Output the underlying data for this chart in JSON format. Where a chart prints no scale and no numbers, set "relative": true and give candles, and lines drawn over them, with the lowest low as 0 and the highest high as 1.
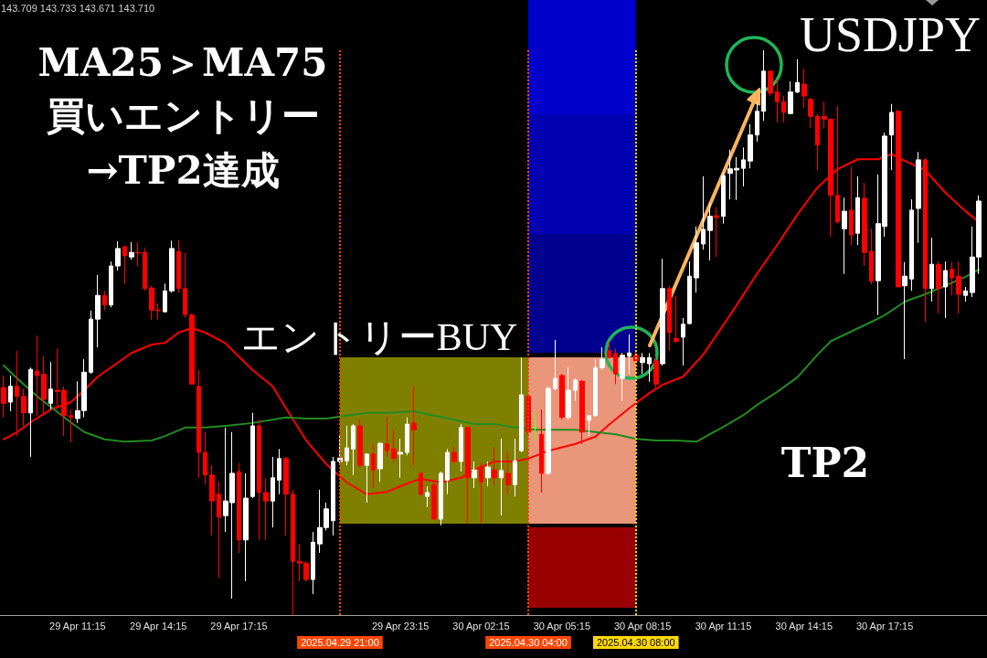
{
  "chart_data": {
    "type": "candlestick",
    "title": "USDJPY",
    "annotations": [
      "143.709 143.733 143.671 143.710",
      "MA25＞MA75",
      "買いエントリー",
      "→TP2達成",
      "エントリーBUY",
      "TP2"
    ],
    "relative": true,
    "x": [
      "2025-04-29T08:30",
      "2025-04-29T08:45",
      "2025-04-29T09:00",
      "2025-04-29T09:15",
      "2025-04-29T09:30",
      "2025-04-29T09:45",
      "2025-04-29T10:00",
      "2025-04-29T10:15",
      "2025-04-29T10:30",
      "2025-04-29T10:45",
      "2025-04-29T11:00",
      "2025-04-29T11:15",
      "2025-04-29T11:30",
      "2025-04-29T11:45",
      "2025-04-29T12:00",
      "2025-04-29T12:15",
      "2025-04-29T12:30",
      "2025-04-29T12:45",
      "2025-04-29T13:00",
      "2025-04-29T13:15",
      "2025-04-29T13:30",
      "2025-04-29T13:45",
      "2025-04-29T14:00",
      "2025-04-29T14:15",
      "2025-04-29T14:30",
      "2025-04-29T14:45",
      "2025-04-29T15:00",
      "2025-04-29T15:15",
      "2025-04-29T15:30",
      "2025-04-29T15:45",
      "2025-04-29T16:00",
      "2025-04-29T16:15",
      "2025-04-29T16:30",
      "2025-04-29T16:45",
      "2025-04-29T17:00",
      "2025-04-29T17:15",
      "2025-04-29T17:30",
      "2025-04-29T17:45",
      "2025-04-29T18:00",
      "2025-04-29T18:15",
      "2025-04-29T18:30",
      "2025-04-29T18:45",
      "2025-04-29T19:00",
      "2025-04-29T19:15",
      "2025-04-29T19:30",
      "2025-04-29T19:45",
      "2025-04-29T20:00",
      "2025-04-29T20:15",
      "2025-04-29T20:30",
      "2025-04-29T20:45",
      "2025-04-29T21:00",
      "2025-04-29T21:15",
      "2025-04-29T21:30",
      "2025-04-29T21:45",
      "2025-04-29T22:00",
      "2025-04-29T22:15",
      "2025-04-29T22:30",
      "2025-04-29T22:45",
      "2025-04-29T23:00",
      "2025-04-29T23:15",
      "2025-04-29T23:30",
      "2025-04-29T23:45",
      "2025-04-30T00:00",
      "2025-04-30T00:15",
      "2025-04-30T00:30",
      "2025-04-30T00:45",
      "2025-04-30T01:00",
      "2025-04-30T01:15",
      "2025-04-30T01:30",
      "2025-04-30T01:45",
      "2025-04-30T02:00",
      "2025-04-30T02:15",
      "2025-04-30T02:30",
      "2025-04-30T02:45",
      "2025-04-30T03:00",
      "2025-04-30T03:15",
      "2025-04-30T03:30",
      "2025-04-30T03:45",
      "2025-04-30T04:00",
      "2025-04-30T04:15",
      "2025-04-30T04:30",
      "2025-04-30T04:45",
      "2025-04-30T05:00",
      "2025-04-30T05:15",
      "2025-04-30T05:30",
      "2025-04-30T05:45",
      "2025-04-30T06:00",
      "2025-04-30T06:15",
      "2025-04-30T06:30",
      "2025-04-30T06:45",
      "2025-04-30T07:00",
      "2025-04-30T07:15",
      "2025-04-30T07:30",
      "2025-04-30T07:45",
      "2025-04-30T08:00",
      "2025-04-30T08:15",
      "2025-04-30T08:30",
      "2025-04-30T08:45",
      "2025-04-30T09:00",
      "2025-04-30T09:15",
      "2025-04-30T09:30",
      "2025-04-30T09:45",
      "2025-04-30T10:00",
      "2025-04-30T10:15",
      "2025-04-30T10:30",
      "2025-04-30T10:45",
      "2025-04-30T11:00",
      "2025-04-30T11:15",
      "2025-04-30T11:30",
      "2025-04-30T11:45",
      "2025-04-30T12:00",
      "2025-04-30T12:15",
      "2025-04-30T12:30",
      "2025-04-30T12:45",
      "2025-04-30T13:00",
      "2025-04-30T13:15",
      "2025-04-30T13:30",
      "2025-04-30T13:45",
      "2025-04-30T14:00",
      "2025-04-30T14:15",
      "2025-04-30T14:30",
      "2025-04-30T14:45",
      "2025-04-30T15:00",
      "2025-04-30T15:15",
      "2025-04-30T15:30",
      "2025-04-30T15:45",
      "2025-04-30T16:00",
      "2025-04-30T16:15",
      "2025-04-30T16:30",
      "2025-04-30T16:45",
      "2025-04-30T17:00",
      "2025-04-30T17:15",
      "2025-04-30T17:30",
      "2025-04-30T17:45",
      "2025-04-30T18:00",
      "2025-04-30T18:15",
      "2025-04-30T18:30",
      "2025-04-30T18:45",
      "2025-04-30T19:00",
      "2025-04-30T19:15",
      "2025-04-30T19:30",
      "2025-04-30T19:45",
      "2025-04-30T20:00",
      "2025-04-30T20:15",
      "2025-04-30T20:30",
      "2025-04-30T20:45"
    ],
    "ohlc": [
      [
        0.403,
        0.424,
        0.35,
        0.375
      ],
      [
        0.377,
        0.424,
        0.361,
        0.405
      ],
      [
        0.405,
        0.468,
        0.317,
        0.387
      ],
      [
        0.387,
        0.401,
        0.335,
        0.358
      ],
      [
        0.358,
        0.438,
        0.28,
        0.435
      ],
      [
        0.432,
        0.495,
        0.353,
        0.424
      ],
      [
        0.426,
        0.458,
        0.353,
        0.382
      ],
      [
        0.375,
        0.448,
        0.364,
        0.4
      ],
      [
        0.398,
        0.472,
        0.364,
        0.396
      ],
      [
        0.398,
        0.405,
        0.317,
        0.353
      ],
      [
        0.353,
        0.364,
        0.306,
        0.35
      ],
      [
        0.348,
        0.414,
        0.34,
        0.362
      ],
      [
        0.362,
        0.453,
        0.35,
        0.43
      ],
      [
        0.43,
        0.539,
        0.427,
        0.524
      ],
      [
        0.524,
        0.602,
        0.474,
        0.566
      ],
      [
        0.566,
        0.574,
        0.54,
        0.549
      ],
      [
        0.549,
        0.626,
        0.545,
        0.618
      ],
      [
        0.618,
        0.662,
        0.61,
        0.649
      ],
      [
        0.652,
        0.655,
        0.586,
        0.636
      ],
      [
        0.634,
        0.66,
        0.629,
        0.642
      ],
      [
        0.642,
        0.66,
        0.618,
        0.641
      ],
      [
        0.642,
        0.65,
        0.574,
        0.578
      ],
      [
        0.579,
        0.583,
        0.523,
        0.54
      ],
      [
        0.54,
        0.552,
        0.523,
        0.539
      ],
      [
        0.537,
        0.587,
        0.536,
        0.574
      ],
      [
        0.574,
        0.663,
        0.571,
        0.649
      ],
      [
        0.644,
        0.663,
        0.571,
        0.578
      ],
      [
        0.578,
        0.641,
        0.526,
        0.532
      ],
      [
        0.531,
        0.534,
        0.408,
        0.409
      ],
      [
        0.405,
        0.434,
        0.243,
        0.288
      ],
      [
        0.288,
        0.324,
        0.231,
        0.248
      ],
      [
        0.248,
        0.265,
        0.141,
        0.202
      ],
      [
        0.214,
        0.236,
        0.066,
        0.173
      ],
      [
        0.176,
        0.332,
        0.147,
        0.202
      ],
      [
        0.199,
        0.324,
        0.029,
        0.251
      ],
      [
        0.254,
        0.269,
        0.11,
        0.133
      ],
      [
        0.133,
        0.251,
        0.06,
        0.207
      ],
      [
        0.21,
        0.358,
        0.207,
        0.335
      ],
      [
        0.335,
        0.346,
        0.133,
        0.217
      ],
      [
        0.217,
        0.243,
        0.133,
        0.202
      ],
      [
        0.202,
        0.28,
        0.155,
        0.243
      ],
      [
        0.239,
        0.294,
        0.214,
        0.277
      ],
      [
        0.277,
        0.28,
        0.141,
        0.214
      ],
      [
        0.214,
        0.222,
        0,
        0.095
      ],
      [
        0.095,
        0.126,
        0.06,
        0.092
      ],
      [
        0.092,
        0.095,
        0.06,
        0.063
      ],
      [
        0.063,
        0.147,
        0.037,
        0.129
      ],
      [
        0.126,
        0.222,
        0.11,
        0.155
      ],
      [
        0.155,
        0.199,
        0.15,
        0.188
      ],
      [
        0.167,
        0.28,
        0.141,
        0.272
      ],
      [
        0.272,
        0.32,
        0.269,
        0.278
      ],
      [
        0.273,
        0.335,
        0.265,
        0.296
      ],
      [
        0.294,
        0.338,
        0.248,
        0.335
      ],
      [
        0.335,
        0.346,
        0.262,
        0.265
      ],
      [
        0.265,
        0.286,
        0.199,
        0.285
      ],
      [
        0.285,
        0.303,
        0.225,
        0.257
      ],
      [
        0.259,
        0.306,
        0.236,
        0.304
      ],
      [
        0.303,
        0.35,
        0.28,
        0.291
      ],
      [
        0.294,
        0.328,
        0.272,
        0.277
      ],
      [
        0.285,
        0.312,
        0.243,
        0.288
      ],
      [
        0.288,
        0.35,
        0.283,
        0.338
      ],
      [
        0.34,
        0.405,
        0.265,
        0.328
      ],
      [
        0.251,
        0.251,
        0.21,
        0.214
      ],
      [
        0.21,
        0.228,
        0.191,
        0.217
      ],
      [
        0.231,
        0.236,
        0.168,
        0.17
      ],
      [
        0.17,
        0.254,
        0.159,
        0.251
      ],
      [
        0.239,
        0.294,
        0.214,
        0.288
      ],
      [
        0.288,
        0.298,
        0.269,
        0.272
      ],
      [
        0.272,
        0.338,
        0.254,
        0.332
      ],
      [
        0.332,
        0.332,
        0.162,
        0.243
      ],
      [
        0.243,
        0.272,
        0.225,
        0.257
      ],
      [
        0.262,
        0.269,
        0.162,
        0.236
      ],
      [
        0.243,
        0.272,
        0.228,
        0.262
      ],
      [
        0.257,
        0.298,
        0.231,
        0.243
      ],
      [
        0.243,
        0.312,
        0.176,
        0.256
      ],
      [
        0.251,
        0.288,
        0.214,
        0.231
      ],
      [
        0.231,
        0.312,
        0.21,
        0.273
      ],
      [
        0.291,
        0.456,
        0.288,
        0.39
      ],
      [
        0.387,
        0.39,
        0.32,
        0.324
      ],
      [
        0.332,
        0.358,
        0.309,
        0.332
      ],
      [
        0.32,
        0.364,
        0.217,
        0.251
      ],
      [
        0.251,
        0.405,
        0.248,
        0.401
      ],
      [
        0.401,
        0.487,
        0.398,
        0.419
      ],
      [
        0.424,
        0.427,
        0.346,
        0.35
      ],
      [
        0.35,
        0.438,
        0.346,
        0.398
      ],
      [
        0.398,
        0.419,
        0.379,
        0.416
      ],
      [
        0.414,
        0.416,
        0.303,
        0.324
      ],
      [
        0.345,
        0.353,
        0.317,
        0.353
      ],
      [
        0.353,
        0.453,
        0.353,
        0.438
      ],
      [
        0.438,
        0.474,
        0.434,
        0.453
      ],
      [
        0.468,
        0.485,
        0.456,
        0.456
      ],
      [
        0.463,
        0.472,
        0.409,
        0.427
      ],
      [
        0.419,
        0.464,
        0.379,
        0.46
      ],
      [
        0.458,
        0.497,
        0.427,
        0.464
      ],
      [
        0.46,
        0.466,
        0.445,
        0.45
      ],
      [
        0.447,
        0.464,
        0.427,
        0.456
      ],
      [
        0.445,
        0.464,
        0.413,
        0.456
      ],
      [
        0.45,
        0.458,
        0.401,
        0.409
      ],
      [
        0.445,
        0.631,
        0.442,
        0.578
      ],
      [
        0.578,
        0.583,
        0.468,
        0.5
      ],
      [
        0.49,
        0.565,
        0.482,
        0.485
      ],
      [
        0.492,
        0.526,
        0.442,
        0.515
      ],
      [
        0.516,
        0.626,
        0.515,
        0.6
      ],
      [
        0.597,
        0.688,
        0.571,
        0.659
      ],
      [
        0.657,
        0.777,
        0.647,
        0.683
      ],
      [
        0.681,
        0.73,
        0.628,
        0.706
      ],
      [
        0.707,
        0.722,
        0.634,
        0.704
      ],
      [
        0.706,
        0.783,
        0.693,
        0.778
      ],
      [
        0.782,
        0.824,
        0.736,
        0.79
      ],
      [
        0.788,
        0.811,
        0.735,
        0.791
      ],
      [
        0.791,
        0.828,
        0.759,
        0.806
      ],
      [
        0.804,
        0.869,
        0.791,
        0.85
      ],
      [
        0.85,
        0.909,
        0.838,
        0.892
      ],
      [
        0.892,
        1,
        0.875,
        0.963
      ],
      [
        0.963,
        0.963,
        0.919,
        0.924
      ],
      [
        0.926,
        0.948,
        0.872,
        0.909
      ],
      [
        0.909,
        0.919,
        0.872,
        0.89
      ],
      [
        0.888,
        0.945,
        0.887,
        0.926
      ],
      [
        0.926,
        0.984,
        0.924,
        0.943
      ],
      [
        0.94,
        0.968,
        0.898,
        0.919
      ],
      [
        0.913,
        0.916,
        0.862,
        0.883
      ],
      [
        0.883,
        0.887,
        0.788,
        0.832
      ],
      [
        0.883,
        0.909,
        0.861,
        0.878
      ],
      [
        0.878,
        0.878,
        0.67,
        0.743
      ],
      [
        0.743,
        0.901,
        0.693,
        0.696
      ],
      [
        0.684,
        0.739,
        0.604,
        0.715
      ],
      [
        0.717,
        0.794,
        0.655,
        0.673
      ],
      [
        0.676,
        0.777,
        0.655,
        0.739
      ],
      [
        0.738,
        0.765,
        0.618,
        0.642
      ],
      [
        0.644,
        0.684,
        0.586,
        0.591
      ],
      [
        0.592,
        0.78,
        0.531,
        0.693
      ],
      [
        0.688,
        0.854,
        0.67,
        0.848
      ],
      [
        0.85,
        0.905,
        0.788,
        0.89
      ],
      [
        0.892,
        0.895,
        0.581,
        0.581
      ],
      [
        0.583,
        0.625,
        0.453,
        0.6
      ],
      [
        0.595,
        0.736,
        0.574,
        0.717
      ],
      [
        0.72,
        0.82,
        0.659,
        0.806
      ],
      [
        0.806,
        0.809,
        0.519,
        0.578
      ],
      [
        0.578,
        0.668,
        0.555,
        0.621
      ],
      [
        0.621,
        0.626,
        0.534,
        0.578
      ],
      [
        0.581,
        0.626,
        0.526,
        0.61
      ],
      [
        0.612,
        0.625,
        0.566,
        0.597
      ],
      [
        0.6,
        0.626,
        0.534,
        0.568
      ],
      [
        0.566,
        0.581,
        0.555,
        0.574
      ],
      [
        0.571,
        0.688,
        0.563,
        0.634
      ],
      [
        0.634,
        0.743,
        0.604,
        0.733
      ]
    ],
    "colors": [
      "#ff0000",
      "#ffffff",
      "#ff0000",
      "#ff0000",
      "#ffffff",
      "#ff0000",
      "#ff0000",
      "#ffffff",
      "#ff0000",
      "#ff0000",
      "#ff0000",
      "#ffffff",
      "#ffffff",
      "#ffffff",
      "#ffffff",
      "#ff0000",
      "#ffffff",
      "#ffffff",
      "#ff0000",
      "#ffffff",
      "#ff0000",
      "#ff0000",
      "#ff0000",
      "#ff0000",
      "#ffffff",
      "#ffffff",
      "#ff0000",
      "#ff0000",
      "#ff0000",
      "#ff0000",
      "#ff0000",
      "#ff0000",
      "#ff0000",
      "#ffffff",
      "#ffffff",
      "#ff0000",
      "#ffffff",
      "#ffffff",
      "#ff0000",
      "#ff0000",
      "#ffffff",
      "#ffffff",
      "#ff0000",
      "#ff0000",
      "#ff0000",
      "#ff0000",
      "#ffffff",
      "#ffffff",
      "#ffffff",
      "#ffffff",
      "#ffffff",
      "#ffffff",
      "#ffffff",
      "#ff0000",
      "#ffffff",
      "#ff0000",
      "#ffffff",
      "#ff0000",
      "#ff0000",
      "#ffffff",
      "#ffffff",
      "#ff0000",
      "#ff0000",
      "#ffffff",
      "#ff0000",
      "#ffffff",
      "#ffffff",
      "#ff0000",
      "#ffffff",
      "#ff0000",
      "#ffffff",
      "#ff0000",
      "#ffffff",
      "#ff0000",
      "#ffffff",
      "#ff0000",
      "#ffffff",
      "#ffffff",
      "#ff0000",
      "#7cfc00",
      "#ff0000",
      "#ffffff",
      "#ffffff",
      "#ff0000",
      "#ffffff",
      "#ffffff",
      "#ff0000",
      "#ffffff",
      "#ffffff",
      "#ffffff",
      "#ff0000",
      "#ff0000",
      "#ffffff",
      "#ffffff",
      "#ff0000",
      "#ffffff",
      "#ffffff",
      "#ff0000",
      "#ffffff",
      "#ff0000",
      "#ff0000",
      "#ffffff",
      "#ffffff",
      "#ffffff",
      "#ffffff",
      "#ffffff",
      "#ff0000",
      "#ffffff",
      "#ffffff",
      "#ffffff",
      "#ffffff",
      "#ffffff",
      "#ffffff",
      "#ffffff",
      "#ff0000",
      "#ff0000",
      "#ff0000",
      "#ffffff",
      "#ffffff",
      "#ff0000",
      "#ff0000",
      "#ff0000",
      "#ff0000",
      "#ff0000",
      "#ff0000",
      "#ffffff",
      "#ff0000",
      "#ffffff",
      "#ff0000",
      "#ff0000",
      "#ffffff",
      "#ffffff",
      "#ffffff",
      "#ff0000",
      "#ffffff",
      "#ffffff",
      "#ffffff",
      "#ff0000",
      "#ffffff",
      "#ff0000",
      "#ffffff",
      "#ff0000",
      "#ff0000",
      "#ffffff",
      "#ffffff",
      "#ffffff"
    ],
    "series": [
      {
        "type": "line",
        "color": "#ff0000",
        "x": [
          "2025-04-29T08:30",
          "2025-04-29T09:00",
          "2025-04-29T09:30",
          "2025-04-29T10:15",
          "2025-04-29T11:00",
          "2025-04-29T11:30",
          "2025-04-29T12:00",
          "2025-04-29T12:45",
          "2025-04-29T13:15",
          "2025-04-29T14:00",
          "2025-04-29T14:30",
          "2025-04-29T15:00",
          "2025-04-29T15:30",
          "2025-04-29T16:00",
          "2025-04-29T16:45",
          "2025-04-29T17:45",
          "2025-04-29T18:30",
          "2025-04-29T19:00",
          "2025-04-29T19:45",
          "2025-04-29T20:30",
          "2025-04-29T21:15",
          "2025-04-29T22:00",
          "2025-04-29T22:45",
          "2025-04-29T23:30",
          "2025-04-30T00:00",
          "2025-04-30T00:45",
          "2025-04-30T01:30",
          "2025-04-30T02:00",
          "2025-04-30T02:45",
          "2025-04-30T03:30",
          "2025-04-30T04:00",
          "2025-04-30T04:45",
          "2025-04-30T05:45",
          "2025-04-30T06:30",
          "2025-04-30T07:00",
          "2025-04-30T07:45",
          "2025-04-30T08:30",
          "2025-04-30T09:00",
          "2025-04-30T09:45",
          "2025-04-30T10:30",
          "2025-04-30T11:30",
          "2025-04-30T12:30",
          "2025-04-30T13:15",
          "2025-04-30T14:00",
          "2025-04-30T14:45",
          "2025-04-30T15:30",
          "2025-04-30T16:15",
          "2025-04-30T17:00",
          "2025-04-30T17:30",
          "2025-04-30T18:00",
          "2025-04-30T18:45",
          "2025-04-30T19:30",
          "2025-04-30T20:15",
          "2025-04-30T20:45"
        ],
        "values": [
          0.311,
          0.324,
          0.341,
          0.364,
          0.377,
          0.398,
          0.422,
          0.447,
          0.464,
          0.479,
          0.482,
          0.5,
          0.508,
          0.5,
          0.481,
          0.434,
          0.405,
          0.366,
          0.309,
          0.267,
          0.235,
          0.214,
          0.218,
          0.233,
          0.241,
          0.235,
          0.243,
          0.257,
          0.272,
          0.272,
          0.277,
          0.291,
          0.303,
          0.316,
          0.337,
          0.366,
          0.393,
          0.408,
          0.422,
          0.461,
          0.531,
          0.604,
          0.655,
          0.709,
          0.757,
          0.79,
          0.807,
          0.807,
          0.816,
          0.804,
          0.788,
          0.748,
          0.715,
          0.696
        ]
      },
      {
        "type": "line",
        "color": "#228b22",
        "x": [
          "2025-04-29T08:30",
          "2025-04-29T09:00",
          "2025-04-29T09:45",
          "2025-04-29T10:15",
          "2025-04-29T11:00",
          "2025-04-29T11:30",
          "2025-04-29T12:15",
          "2025-04-29T13:00",
          "2025-04-29T14:00",
          "2025-04-29T14:30",
          "2025-04-29T15:15",
          "2025-04-29T16:00",
          "2025-04-29T16:45",
          "2025-04-29T17:45",
          "2025-04-29T19:00",
          "2025-04-29T19:45",
          "2025-04-29T20:30",
          "2025-04-29T21:15",
          "2025-04-29T22:00",
          "2025-04-29T22:45",
          "2025-04-29T23:45",
          "2025-04-30T00:30",
          "2025-04-30T01:15",
          "2025-04-30T02:00",
          "2025-04-30T02:45",
          "2025-04-30T03:30",
          "2025-04-30T04:15",
          "2025-04-30T05:45",
          "2025-04-30T06:30",
          "2025-04-30T07:15",
          "2025-04-30T08:00",
          "2025-04-30T08:45",
          "2025-04-30T09:30",
          "2025-04-30T10:15",
          "2025-04-30T10:45",
          "2025-04-30T11:15",
          "2025-04-30T12:00",
          "2025-04-30T12:30",
          "2025-04-30T13:15",
          "2025-04-30T14:00",
          "2025-04-30T14:45",
          "2025-04-30T15:15",
          "2025-04-30T16:00",
          "2025-04-30T16:45",
          "2025-04-30T17:15",
          "2025-04-30T18:00",
          "2025-04-30T18:45",
          "2025-04-30T19:30",
          "2025-04-30T20:15",
          "2025-04-30T20:45"
        ],
        "values": [
          0.442,
          0.419,
          0.387,
          0.369,
          0.341,
          0.324,
          0.311,
          0.307,
          0.309,
          0.317,
          0.332,
          0.332,
          0.335,
          0.34,
          0.35,
          0.348,
          0.348,
          0.353,
          0.358,
          0.358,
          0.361,
          0.353,
          0.346,
          0.338,
          0.338,
          0.332,
          0.328,
          0.328,
          0.324,
          0.32,
          0.312,
          0.309,
          0.309,
          0.307,
          0.32,
          0.333,
          0.354,
          0.372,
          0.395,
          0.421,
          0.461,
          0.485,
          0.502,
          0.519,
          0.531,
          0.555,
          0.568,
          0.583,
          0.599,
          0.612
        ]
      }
    ],
    "xlim": [
      "2025-04-29T08:22",
      "2025-04-30T21:03"
    ],
    "xticks": [
      {
        "value": "2025-04-29T11:15",
        "label": "29 Apr 11:15"
      },
      {
        "value": "2025-04-29T14:15",
        "label": "29 Apr 14:15"
      },
      {
        "value": "2025-04-29T17:15",
        "label": "29 Apr 17:15"
      },
      {
        "value": "2025-04-29T23:15",
        "label": "29 Apr 23:15"
      },
      {
        "value": "2025-04-30T02:15",
        "label": "30 Apr 02:15"
      },
      {
        "value": "2025-04-30T05:15",
        "label": "30 Apr 05:15"
      },
      {
        "value": "2025-04-30T08:15",
        "label": "30 Apr 08:15"
      },
      {
        "value": "2025-04-30T11:15",
        "label": "30 Apr 11:15"
      },
      {
        "value": "2025-04-30T14:15",
        "label": "30 Apr 14:15"
      },
      {
        "value": "2025-04-30T17:15",
        "label": "30 Apr 17:15"
      }
    ],
    "ref_lines": [
      {
        "axis": "x",
        "value": "2025-04-29T21:00",
        "label": "2025.04.29 21:00",
        "color": "#ff4500",
        "line_style": "dotted"
      },
      {
        "axis": "x",
        "value": "2025-04-30T04:00",
        "label": "2025.04.30 04:00",
        "color": "#ff4500",
        "line_style": "dotted"
      },
      {
        "axis": "x",
        "value": "2025-04-30T08:00",
        "label": "2025.04.30 08:00",
        "color": "#ffd700",
        "line_style": "dotted"
      }
    ]
  }
}
